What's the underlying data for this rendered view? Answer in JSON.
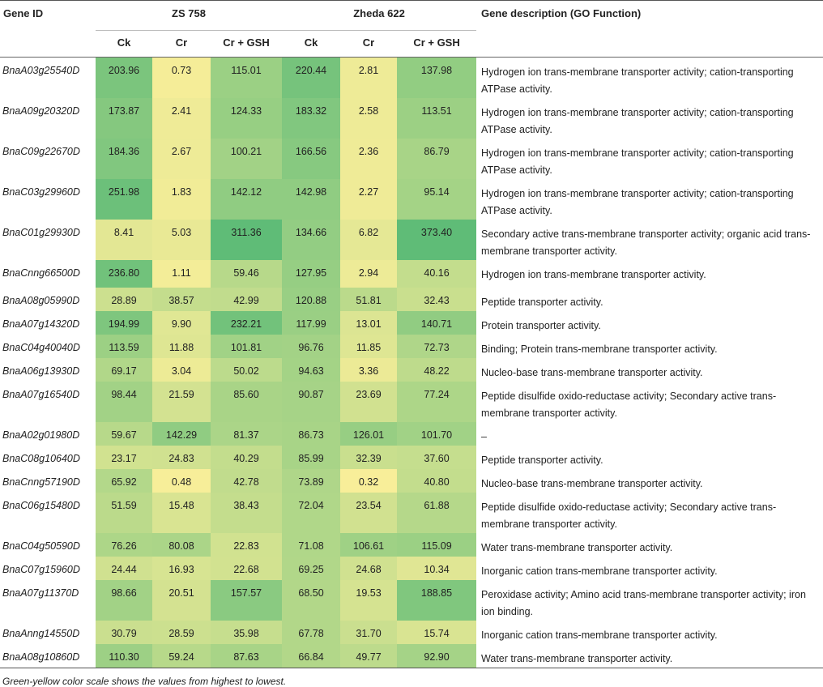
{
  "headers": {
    "gene_id": "Gene ID",
    "group1": "ZS 758",
    "group2": "Zheda 622",
    "sub": [
      "Ck",
      "Cr",
      "Cr + GSH"
    ],
    "description": "Gene description (GO Function)"
  },
  "rows": [
    {
      "id": "BnaA03g25540D",
      "v": [
        "203.96",
        "0.73",
        "115.01",
        "220.44",
        "2.81",
        "137.98"
      ],
      "desc": "Hydrogen ion trans-membrane transporter activity; cation-transporting ATPase activity."
    },
    {
      "id": "BnaA09g20320D",
      "v": [
        "173.87",
        "2.41",
        "124.33",
        "183.32",
        "2.58",
        "113.51"
      ],
      "desc": "Hydrogen ion trans-membrane transporter activity; cation-transporting ATPase activity."
    },
    {
      "id": "BnaC09g22670D",
      "v": [
        "184.36",
        "2.67",
        "100.21",
        "166.56",
        "2.36",
        "86.79"
      ],
      "desc": "Hydrogen ion trans-membrane transporter activity; cation-transporting ATPase activity."
    },
    {
      "id": "BnaC03g29960D",
      "v": [
        "251.98",
        "1.83",
        "142.12",
        "142.98",
        "2.27",
        "95.14"
      ],
      "desc": "Hydrogen ion trans-membrane transporter activity; cation-transporting ATPase activity."
    },
    {
      "id": "BnaC01g29930D",
      "v": [
        "8.41",
        "5.03",
        "311.36",
        "134.66",
        "6.82",
        "373.40"
      ],
      "desc": "Secondary active trans-membrane transporter activity; organic acid trans-membrane transporter activity."
    },
    {
      "id": "BnaCnng66500D",
      "v": [
        "236.80",
        "1.11",
        "59.46",
        "127.95",
        "2.94",
        "40.16"
      ],
      "desc": "Hydrogen ion trans-membrane transporter activity."
    },
    {
      "id": "BnaA08g05990D",
      "v": [
        "28.89",
        "38.57",
        "42.99",
        "120.88",
        "51.81",
        "32.43"
      ],
      "desc": "Peptide transporter activity."
    },
    {
      "id": "BnaA07g14320D",
      "v": [
        "194.99",
        "9.90",
        "232.21",
        "117.99",
        "13.01",
        "140.71"
      ],
      "desc": "Protein transporter activity."
    },
    {
      "id": "BnaC04g40040D",
      "v": [
        "113.59",
        "11.88",
        "101.81",
        "96.76",
        "11.85",
        "72.73"
      ],
      "desc": "Binding; Protein trans-membrane transporter activity."
    },
    {
      "id": "BnaA06g13930D",
      "v": [
        "69.17",
        "3.04",
        "50.02",
        "94.63",
        "3.36",
        "48.22"
      ],
      "desc": "Nucleo-base trans-membrane transporter activity."
    },
    {
      "id": "BnaA07g16540D",
      "v": [
        "98.44",
        "21.59",
        "85.60",
        "90.87",
        "23.69",
        "77.24"
      ],
      "desc": "Peptide disulfide oxido-reductase activity; Secondary active trans-membrane transporter activity."
    },
    {
      "id": "BnaA02g01980D",
      "v": [
        "59.67",
        "142.29",
        "81.37",
        "86.73",
        "126.01",
        "101.70"
      ],
      "desc": "–"
    },
    {
      "id": "BnaC08g10640D",
      "v": [
        "23.17",
        "24.83",
        "40.29",
        "85.99",
        "32.39",
        "37.60"
      ],
      "desc": "Peptide transporter activity."
    },
    {
      "id": "BnaCnng57190D",
      "v": [
        "65.92",
        "0.48",
        "42.78",
        "73.89",
        "0.32",
        "40.80"
      ],
      "desc": "Nucleo-base trans-membrane transporter activity."
    },
    {
      "id": "BnaC06g15480D",
      "v": [
        "51.59",
        "15.48",
        "38.43",
        "72.04",
        "23.54",
        "61.88"
      ],
      "desc": "Peptide disulfide oxido-reductase activity; Secondary active trans-membrane transporter activity."
    },
    {
      "id": "BnaC04g50590D",
      "v": [
        "76.26",
        "80.08",
        "22.83",
        "71.08",
        "106.61",
        "115.09"
      ],
      "desc": "Water trans-membrane transporter activity."
    },
    {
      "id": "BnaC07g15960D",
      "v": [
        "24.44",
        "16.93",
        "22.68",
        "69.25",
        "24.68",
        "10.34"
      ],
      "desc": "Inorganic cation trans-membrane transporter activity."
    },
    {
      "id": "BnaA07g11370D",
      "v": [
        "98.66",
        "20.51",
        "157.57",
        "68.50",
        "19.53",
        "188.85"
      ],
      "desc": "Peroxidase activity; Amino acid trans-membrane transporter activity; iron ion binding."
    },
    {
      "id": "BnaAnng14550D",
      "v": [
        "30.79",
        "28.59",
        "35.98",
        "67.78",
        "31.70",
        "15.74"
      ],
      "desc": "Inorganic cation trans-membrane transporter activity."
    },
    {
      "id": "BnaA08g10860D",
      "v": [
        "110.30",
        "59.24",
        "87.63",
        "66.84",
        "49.77",
        "92.90"
      ],
      "desc": "Water trans-membrane transporter activity."
    }
  ],
  "footnote": "Green-yellow color scale shows the values from highest to lowest.",
  "color_scale": {
    "low": "#fdf09a",
    "high": "#5fbc77"
  }
}
